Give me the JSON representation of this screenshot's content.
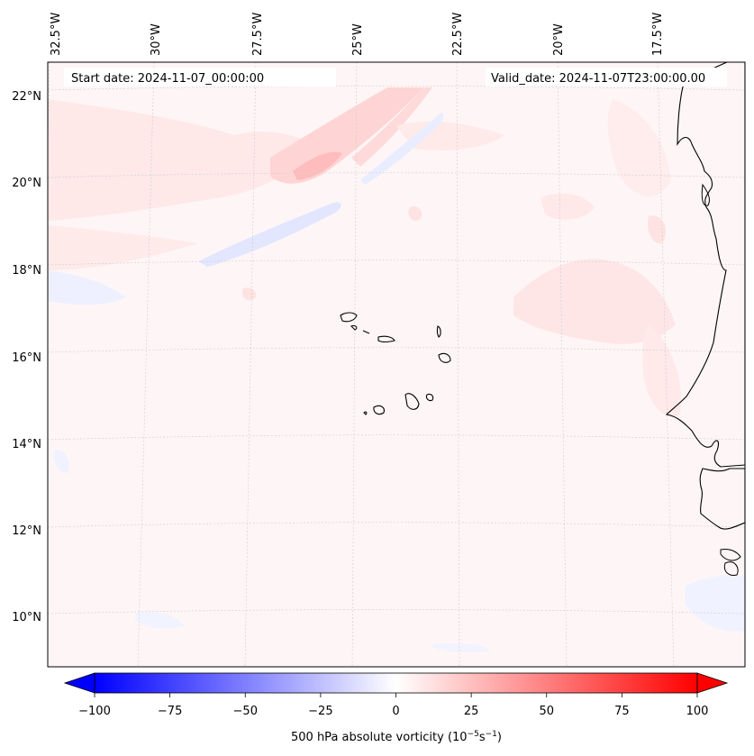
{
  "map": {
    "start_label": "Start date: 2024-11-07_00:00:00",
    "valid_label": "Valid_date: 2024-11-07T23:00:00.00",
    "lon_labels": [
      "32.5°W",
      "30°W",
      "27.5°W",
      "25°W",
      "22.5°W",
      "20°W",
      "17.5°W"
    ],
    "lat_labels": [
      "22°N",
      "20°N",
      "18°N",
      "16°N",
      "14°N",
      "12°N",
      "10°N"
    ],
    "extent": {
      "lon_min": -33.0,
      "lon_max": -16.2,
      "lat_min": 8.8,
      "lat_max": 22.8
    }
  },
  "colorbar": {
    "ticks": [
      "−100",
      "−75",
      "−50",
      "−25",
      "0",
      "25",
      "50",
      "75",
      "100"
    ],
    "tick_values": [
      -100,
      -75,
      -50,
      -25,
      0,
      25,
      50,
      75,
      100
    ],
    "range": [
      -100,
      100
    ],
    "label": "500 hPa absolute vorticity (10",
    "label_exp1": "−5",
    "label_mid": "s",
    "label_exp2": "−1",
    "label_end": ")",
    "colors": {
      "low": "#0000ff",
      "mid": "#ffffff",
      "high": "#ff0000"
    }
  },
  "colors": {
    "background_field": "#fef6f6",
    "positive_weak": "#ffe8e8",
    "positive_mid": "#ffd2d2",
    "positive_strong": "#ffbcbc",
    "negative_weak": "#eef0ff",
    "negative_mid": "#e2e6ff",
    "coastline": "#000000",
    "gridline": "#cccccc"
  }
}
